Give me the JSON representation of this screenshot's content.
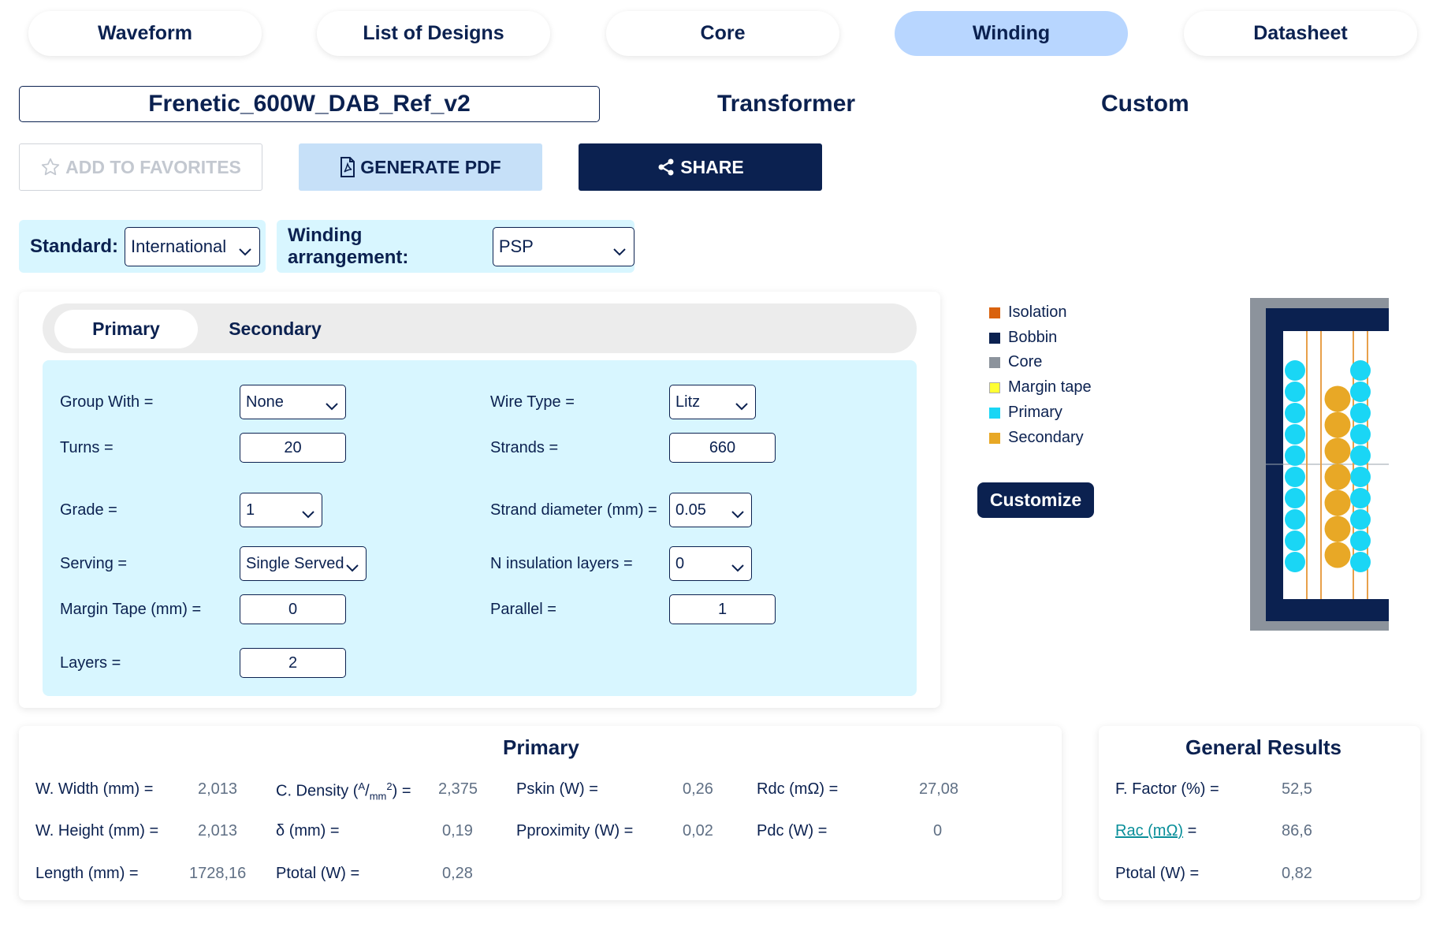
{
  "tabs": [
    {
      "label": "Waveform",
      "active": false
    },
    {
      "label": "List of Designs",
      "active": false
    },
    {
      "label": "Core",
      "active": false
    },
    {
      "label": "Winding",
      "active": true
    },
    {
      "label": "Datasheet",
      "active": false
    }
  ],
  "design": {
    "name": "Frenetic_600W_DAB_Ref_v2",
    "type": "Transformer",
    "mode": "Custom"
  },
  "actions": {
    "favorites_label": "ADD TO FAVORITES",
    "pdf_label": "GENERATE PDF",
    "share_label": "SHARE"
  },
  "filters": {
    "standard_label": "Standard:",
    "standard_value": "International",
    "arrangement_label": "Winding arrangement:",
    "arrangement_value": "PSP"
  },
  "winding_tabs": [
    {
      "label": "Primary",
      "active": true
    },
    {
      "label": "Secondary",
      "active": false
    }
  ],
  "form": {
    "group_with": {
      "label": "Group With =",
      "value": "None"
    },
    "turns": {
      "label": "Turns =",
      "value": "20"
    },
    "grade": {
      "label": "Grade =",
      "value": "1"
    },
    "serving": {
      "label": "Serving =",
      "value": "Single Served"
    },
    "margin_tape": {
      "label": "Margin Tape (mm) =",
      "value": "0"
    },
    "layers": {
      "label": "Layers =",
      "value": "2"
    },
    "wire_type": {
      "label": "Wire Type =",
      "value": "Litz"
    },
    "strands": {
      "label": "Strands =",
      "value": "660"
    },
    "strand_diameter": {
      "label": "Strand diameter (mm) =",
      "value": "0.05"
    },
    "n_insulation_layers": {
      "label": "N insulation layers =",
      "value": "0"
    },
    "parallel": {
      "label": "Parallel =",
      "value": "1"
    }
  },
  "legend": [
    {
      "label": "Isolation",
      "color": "#d9620e"
    },
    {
      "label": "Bobbin",
      "color": "#0b2150"
    },
    {
      "label": "Core",
      "color": "#8c939c"
    },
    {
      "label": "Margin tape",
      "color": "#ffff33"
    },
    {
      "label": "Primary",
      "color": "#1ad6f5"
    },
    {
      "label": "Secondary",
      "color": "#e8a826"
    }
  ],
  "customize_label": "Customize",
  "winding_view": {
    "primary_turns_per_column": 10,
    "primary_columns": 2,
    "secondary_turns_per_column": 7,
    "secondary_columns": 1
  },
  "primary_results": {
    "title": "Primary",
    "w_width": {
      "label": "W. Width (mm) =",
      "value": "2,013"
    },
    "w_height": {
      "label": "W. Height (mm) =",
      "value": "2,013"
    },
    "length": {
      "label": "Length (mm) =",
      "value": "1728,16"
    },
    "c_density": {
      "label_pre": "C. Density (",
      "unit_num": "A",
      "unit_sep": "/",
      "unit_den": "mm",
      "unit_exp": "2",
      "label_post": ") =",
      "value": "2,375"
    },
    "delta": {
      "label": "δ (mm) =",
      "value": "0,19"
    },
    "ptotal": {
      "label": "Ptotal (W) =",
      "value": "0,28"
    },
    "pskin": {
      "label": "Pskin (W) =",
      "value": "0,26"
    },
    "pproximity": {
      "label": "Pproximity (W) =",
      "value": "0,02"
    },
    "rdc": {
      "label": "Rdc (mΩ) =",
      "value": "27,08"
    },
    "pdc": {
      "label": "Pdc (W) =",
      "value": "0"
    }
  },
  "general_results": {
    "title": "General Results",
    "f_factor": {
      "label": "F. Factor (%) =",
      "value": "52,5"
    },
    "rac": {
      "label_link": "Rac (mΩ)",
      "label_post": " =",
      "value": "86,6"
    },
    "ptotal": {
      "label": "Ptotal (W) =",
      "value": "0,82"
    }
  }
}
